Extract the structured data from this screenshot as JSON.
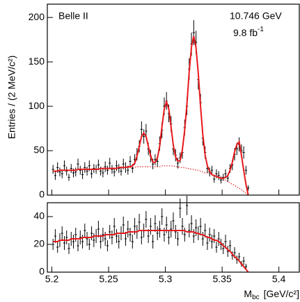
{
  "chart_data": [
    {
      "type": "scatter",
      "experiment": "Belle II",
      "energy": "10.746 GeV",
      "luminosity": {
        "text": "9.8 fb",
        "sup": "-1"
      },
      "ylabel": "Entries / (2 MeV/c²)",
      "xlim": [
        5.196,
        5.418
      ],
      "xticks": [
        5.2,
        5.25,
        5.3,
        5.35,
        5.4
      ],
      "ylim": [
        0,
        215
      ],
      "yticks": [
        0,
        50,
        100,
        150,
        200
      ],
      "data_color": "#000000",
      "fit_color": "#e8191b",
      "x": [
        5.201,
        5.203,
        5.205,
        5.207,
        5.209,
        5.211,
        5.213,
        5.215,
        5.217,
        5.219,
        5.221,
        5.223,
        5.225,
        5.227,
        5.229,
        5.231,
        5.233,
        5.235,
        5.237,
        5.239,
        5.241,
        5.243,
        5.245,
        5.247,
        5.249,
        5.251,
        5.253,
        5.255,
        5.257,
        5.259,
        5.261,
        5.263,
        5.265,
        5.267,
        5.269,
        5.271,
        5.273,
        5.275,
        5.277,
        5.279,
        5.281,
        5.283,
        5.285,
        5.287,
        5.289,
        5.291,
        5.293,
        5.295,
        5.297,
        5.299,
        5.301,
        5.303,
        5.305,
        5.307,
        5.309,
        5.311,
        5.313,
        5.315,
        5.317,
        5.319,
        5.321,
        5.323,
        5.325,
        5.327,
        5.329,
        5.331,
        5.333,
        5.335,
        5.337,
        5.339,
        5.341,
        5.343,
        5.345,
        5.347,
        5.349,
        5.351,
        5.353,
        5.355,
        5.357,
        5.359,
        5.361,
        5.363,
        5.365,
        5.367,
        5.369,
        5.371,
        5.373
      ],
      "values": [
        29,
        22,
        31,
        26,
        24,
        33,
        27,
        20,
        30,
        25,
        26,
        35,
        28,
        23,
        31,
        27,
        33,
        24,
        30,
        29,
        34,
        27,
        25,
        32,
        28,
        36,
        29,
        26,
        33,
        30,
        27,
        35,
        31,
        28,
        38,
        30,
        40,
        46,
        55,
        74,
        66,
        72,
        52,
        44,
        35,
        40,
        38,
        58,
        73,
        100,
        106,
        92,
        80,
        52,
        45,
        36,
        42,
        48,
        76,
        100,
        142,
        170,
        183,
        172,
        130,
        104,
        64,
        48,
        30,
        26,
        28,
        18,
        24,
        22,
        17,
        20,
        24,
        19,
        30,
        34,
        46,
        52,
        57,
        50,
        48,
        28,
        8
      ],
      "errors": [
        5,
        5,
        6,
        5,
        5,
        6,
        5,
        4,
        5,
        5,
        5,
        6,
        5,
        5,
        6,
        5,
        6,
        5,
        5,
        5,
        6,
        5,
        5,
        6,
        5,
        6,
        5,
        5,
        6,
        5,
        5,
        6,
        6,
        5,
        6,
        5,
        6,
        7,
        7,
        9,
        8,
        8,
        7,
        7,
        6,
        6,
        6,
        8,
        9,
        10,
        10,
        10,
        9,
        7,
        7,
        6,
        6,
        7,
        9,
        10,
        12,
        13,
        14,
        13,
        11,
        10,
        8,
        7,
        5,
        5,
        5,
        4,
        5,
        5,
        4,
        4,
        5,
        4,
        5,
        6,
        7,
        7,
        8,
        7,
        7,
        5,
        3
      ],
      "fit": [
        27,
        27,
        27,
        28,
        28,
        28,
        28,
        28,
        28,
        28,
        28,
        29,
        29,
        29,
        29,
        29,
        29,
        29,
        29,
        29,
        29,
        30,
        30,
        30,
        30,
        30,
        30,
        30,
        30,
        31,
        31,
        31,
        31,
        32,
        32,
        33,
        36,
        44,
        55,
        66,
        70,
        66,
        55,
        44,
        37,
        37,
        42,
        55,
        77,
        97,
        105,
        97,
        77,
        56,
        43,
        38,
        39,
        51,
        73,
        103,
        139,
        167,
        179,
        166,
        137,
        100,
        68,
        45,
        33,
        27,
        23,
        22,
        21,
        20,
        19,
        19,
        20,
        22,
        28,
        37,
        49,
        57,
        60,
        45,
        28,
        12,
        0
      ],
      "background": [
        27,
        27,
        27,
        28,
        28,
        28,
        28,
        28,
        28,
        28,
        28,
        29,
        29,
        29,
        29,
        29,
        29,
        29,
        29,
        29,
        29,
        30,
        30,
        30,
        30,
        30,
        30,
        30,
        30,
        31,
        31,
        31,
        31,
        31,
        31,
        31,
        31,
        32,
        32,
        32,
        32,
        32,
        32,
        32,
        32,
        32,
        32,
        32,
        33,
        33,
        33,
        33,
        33,
        33,
        32,
        32,
        31,
        31,
        31,
        30,
        30,
        29,
        29,
        28,
        28,
        27,
        26,
        25,
        25,
        24,
        23,
        22,
        21,
        20,
        19,
        18,
        17,
        15,
        14,
        12,
        11,
        9,
        8,
        6,
        4,
        2,
        0
      ]
    },
    {
      "type": "scatter",
      "xlabel": {
        "main": "M",
        "sub": "bc",
        "unit": "[GeV/c²]"
      },
      "xlim": [
        5.196,
        5.418
      ],
      "xticks": [
        5.2,
        5.25,
        5.3,
        5.35,
        5.4
      ],
      "ylim": [
        0,
        50
      ],
      "yticks": [
        0,
        20,
        40
      ],
      "data_color": "#000000",
      "fit_color": "#e8191b",
      "x": [
        5.201,
        5.203,
        5.205,
        5.207,
        5.209,
        5.211,
        5.213,
        5.215,
        5.217,
        5.219,
        5.221,
        5.223,
        5.225,
        5.227,
        5.229,
        5.231,
        5.233,
        5.235,
        5.237,
        5.239,
        5.241,
        5.243,
        5.245,
        5.247,
        5.249,
        5.251,
        5.253,
        5.255,
        5.257,
        5.259,
        5.261,
        5.263,
        5.265,
        5.267,
        5.269,
        5.271,
        5.273,
        5.275,
        5.277,
        5.279,
        5.281,
        5.283,
        5.285,
        5.287,
        5.289,
        5.291,
        5.293,
        5.295,
        5.297,
        5.299,
        5.301,
        5.303,
        5.305,
        5.307,
        5.309,
        5.311,
        5.313,
        5.315,
        5.317,
        5.319,
        5.321,
        5.323,
        5.325,
        5.327,
        5.329,
        5.331,
        5.333,
        5.335,
        5.337,
        5.339,
        5.341,
        5.343,
        5.345,
        5.347,
        5.349,
        5.351,
        5.353,
        5.355,
        5.357,
        5.359,
        5.361,
        5.363,
        5.365,
        5.367,
        5.369,
        5.371,
        5.373
      ],
      "values": [
        20,
        26,
        18,
        23,
        28,
        21,
        25,
        17,
        24,
        22,
        27,
        19,
        25,
        22,
        30,
        24,
        20,
        28,
        23,
        26,
        31,
        22,
        27,
        24,
        19,
        29,
        25,
        33,
        26,
        22,
        28,
        34,
        24,
        31,
        27,
        22,
        33,
        29,
        36,
        25,
        30,
        38,
        26,
        33,
        22,
        35,
        28,
        31,
        40,
        27,
        34,
        25,
        31,
        37,
        29,
        24,
        46,
        33,
        27,
        48,
        30,
        35,
        26,
        32,
        28,
        33,
        24,
        30,
        21,
        27,
        22,
        26,
        18,
        24,
        20,
        17,
        22,
        15,
        19,
        12,
        14,
        9,
        11,
        6,
        8,
        4,
        0
      ],
      "errors": [
        4,
        5,
        4,
        5,
        5,
        5,
        5,
        4,
        5,
        5,
        5,
        4,
        5,
        5,
        5,
        5,
        4,
        5,
        5,
        5,
        6,
        5,
        5,
        5,
        4,
        5,
        5,
        6,
        5,
        5,
        5,
        6,
        5,
        6,
        5,
        5,
        6,
        5,
        6,
        5,
        5,
        6,
        5,
        6,
        5,
        6,
        5,
        6,
        6,
        5,
        6,
        5,
        6,
        6,
        5,
        5,
        7,
        6,
        5,
        7,
        5,
        6,
        5,
        6,
        5,
        6,
        5,
        5,
        5,
        5,
        5,
        5,
        4,
        5,
        4,
        4,
        5,
        4,
        4,
        3,
        4,
        3,
        3,
        2,
        3,
        2,
        0
      ],
      "fit": [
        22,
        22,
        22,
        23,
        23,
        23,
        23,
        23,
        24,
        24,
        24,
        24,
        24,
        25,
        25,
        25,
        25,
        25,
        26,
        26,
        26,
        26,
        26,
        27,
        27,
        27,
        27,
        27,
        28,
        28,
        28,
        28,
        28,
        29,
        29,
        29,
        29,
        29,
        30,
        30,
        30,
        30,
        30,
        30,
        30,
        30,
        30,
        30,
        30,
        30,
        30,
        30,
        30,
        30,
        30,
        30,
        30,
        30,
        30,
        29,
        29,
        29,
        29,
        28,
        28,
        27,
        27,
        26,
        25,
        25,
        24,
        23,
        23,
        22,
        21,
        19,
        18,
        16,
        15,
        13,
        11,
        10,
        8,
        6,
        4,
        2,
        0
      ]
    }
  ]
}
